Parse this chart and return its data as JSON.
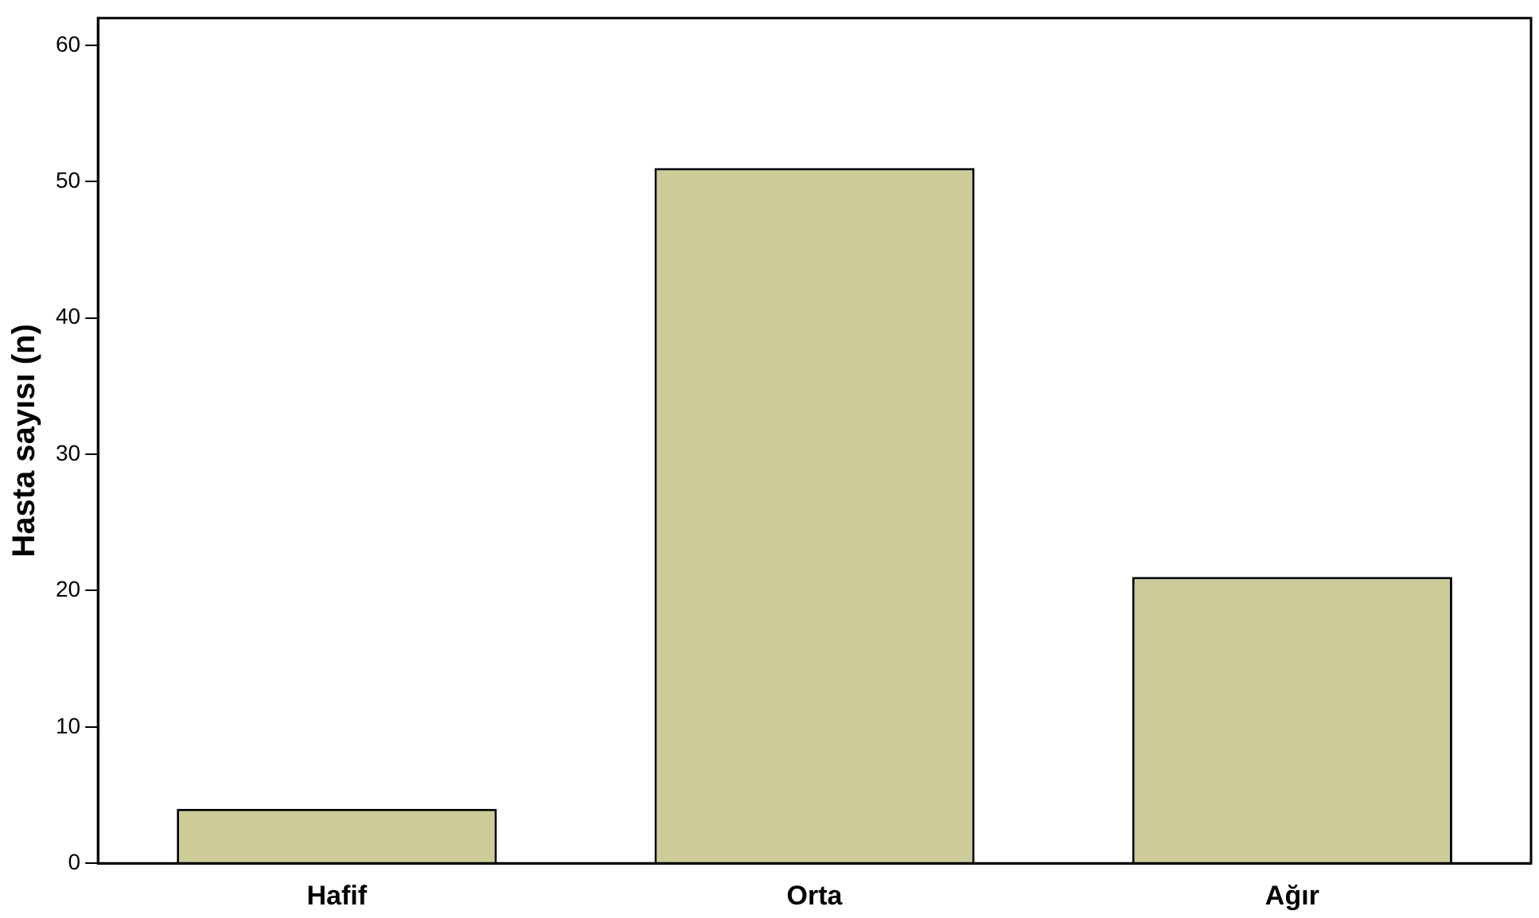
{
  "chart_data": {
    "type": "bar",
    "ylabel": "Hasta sayısı (n)",
    "categories": [
      "Hafif",
      "Orta",
      "Ağır"
    ],
    "values": [
      4,
      51,
      21
    ],
    "color": "#cdcb97",
    "ylim": [
      0,
      62
    ],
    "yticks": [
      0,
      10,
      20,
      30,
      40,
      50,
      60
    ],
    "grid": false,
    "legend": false
  }
}
